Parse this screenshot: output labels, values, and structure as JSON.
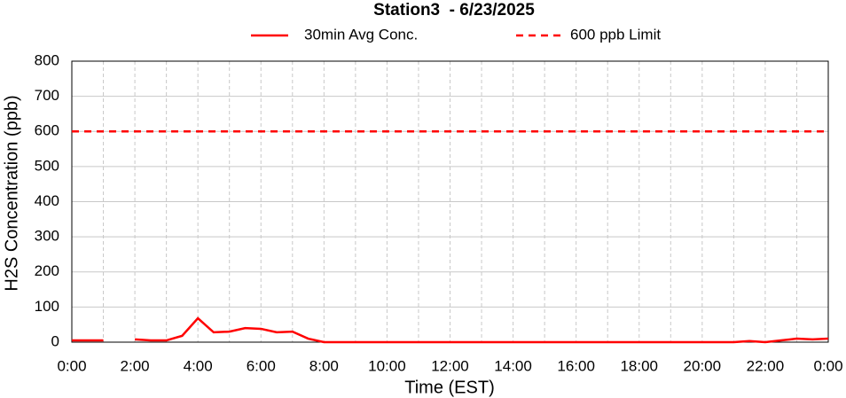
{
  "chart_data": {
    "type": "line",
    "title": "Station3  - 6/23/2025",
    "xlabel": "Time (EST)",
    "ylabel": "H2S Concentration (ppb)",
    "x": [
      0,
      0.5,
      1,
      1.5,
      2,
      2.5,
      3,
      3.5,
      4,
      4.5,
      5,
      5.5,
      6,
      6.5,
      7,
      7.5,
      8,
      8.5,
      9,
      9.5,
      10,
      10.5,
      11,
      11.5,
      12,
      12.5,
      13,
      13.5,
      14,
      14.5,
      15,
      15.5,
      16,
      16.5,
      17,
      17.5,
      18,
      18.5,
      19,
      19.5,
      20,
      20.5,
      21,
      21.5,
      22,
      22.5,
      23,
      23.5,
      24
    ],
    "series": [
      {
        "name": "30min Avg Conc.",
        "color": "#ff0000",
        "values": [
          5,
          5,
          5,
          null,
          8,
          5,
          5,
          18,
          68,
          28,
          30,
          40,
          38,
          28,
          30,
          10,
          0,
          0,
          0,
          0,
          0,
          0,
          0,
          0,
          0,
          0,
          0,
          0,
          0,
          0,
          0,
          0,
          0,
          0,
          0,
          0,
          0,
          0,
          0,
          0,
          0,
          0,
          0,
          3,
          0,
          5,
          10,
          8,
          10
        ]
      }
    ],
    "limit": {
      "name": "600 ppb Limit",
      "value": 600,
      "color": "#ff0000"
    },
    "xlim": [
      0,
      24
    ],
    "xticks": [
      {
        "value": 0,
        "label": "0:00"
      },
      {
        "value": 2,
        "label": "2:00"
      },
      {
        "value": 4,
        "label": "4:00"
      },
      {
        "value": 6,
        "label": "6:00"
      },
      {
        "value": 8,
        "label": "8:00"
      },
      {
        "value": 10,
        "label": "10:00"
      },
      {
        "value": 12,
        "label": "12:00"
      },
      {
        "value": 14,
        "label": "14:00"
      },
      {
        "value": 16,
        "label": "16:00"
      },
      {
        "value": 18,
        "label": "18:00"
      },
      {
        "value": 20,
        "label": "20:00"
      },
      {
        "value": 22,
        "label": "22:00"
      },
      {
        "value": 24,
        "label": "0:00"
      }
    ],
    "xminor": [
      1,
      3,
      5,
      7,
      9,
      11,
      13,
      15,
      17,
      19,
      21,
      23
    ],
    "ylim": [
      0,
      800
    ],
    "yticks": [
      0,
      100,
      200,
      300,
      400,
      500,
      600,
      700,
      800
    ],
    "grid": true
  }
}
